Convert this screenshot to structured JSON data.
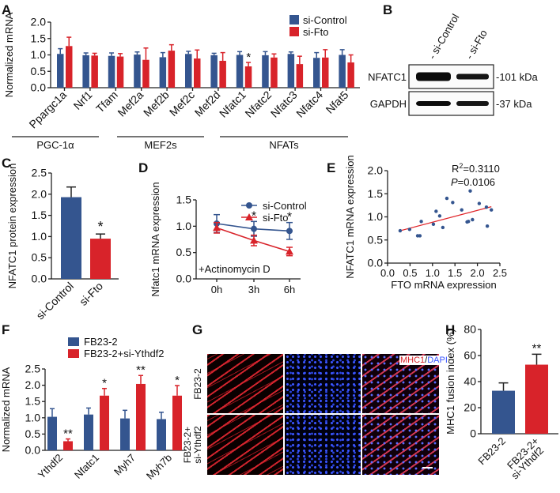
{
  "colors": {
    "control": "#34558f",
    "treatment": "#d8232a",
    "fit_line": "#e0262b",
    "axis": "#222222"
  },
  "panel_labels": {
    "a": "A",
    "b": "B",
    "c": "C",
    "d": "D",
    "e": "E",
    "f": "F",
    "g": "G",
    "h": "H"
  },
  "chart_data": [
    {
      "id": "A",
      "type": "bar",
      "ylabel": "Normalized mRNA",
      "ylim": [
        0,
        2.0
      ],
      "yticks": [
        "0.0",
        "0.5",
        "1.0",
        "1.5",
        "2.0"
      ],
      "legend": [
        "si-Control",
        "si-Fto"
      ],
      "legend_position": "top-right",
      "categories": [
        "Ppargc1a",
        "Nrf1",
        "Tfam",
        "Mef2a",
        "Mef2b",
        "Mef2c",
        "Mef2d",
        "Nfatc1",
        "Nfatc2",
        "Nfatc3",
        "Nfatc4",
        "Nfat5"
      ],
      "series": [
        {
          "name": "si-Control",
          "values": [
            1.03,
            0.99,
            0.97,
            1.01,
            0.93,
            1.03,
            0.99,
            1.0,
            0.99,
            1.03,
            0.91,
            1.0
          ],
          "errors": [
            0.16,
            0.07,
            0.09,
            0.08,
            0.14,
            0.08,
            0.06,
            0.1,
            0.11,
            0.06,
            0.16,
            0.16
          ]
        },
        {
          "name": "si-Fto",
          "values": [
            1.27,
            0.98,
            0.95,
            0.85,
            1.13,
            0.89,
            0.82,
            0.65,
            0.92,
            0.72,
            0.92,
            0.77
          ],
          "errors": [
            0.27,
            0.07,
            0.09,
            0.36,
            0.18,
            0.26,
            0.25,
            0.12,
            0.11,
            0.24,
            0.24,
            0.23
          ]
        }
      ],
      "significance": [
        {
          "category": "Nfatc1",
          "label": "*"
        }
      ],
      "groups": [
        {
          "label": "PGC-1α"
        },
        {
          "label": "MEF2s"
        },
        {
          "label": "NFATs"
        }
      ]
    },
    {
      "id": "C",
      "type": "bar",
      "ylabel": "NFATC1 protein expression",
      "ylim": [
        0,
        2.5
      ],
      "yticks": [
        "0.0",
        "0.5",
        "1.0",
        "1.5",
        "2.0",
        "2.5"
      ],
      "categories": [
        "si-Control",
        "si-Fto"
      ],
      "values": [
        1.93,
        0.95
      ],
      "errors": [
        0.24,
        0.11
      ],
      "significance": [
        {
          "category": "si-Fto",
          "label": "*"
        }
      ]
    },
    {
      "id": "D",
      "type": "line",
      "ylabel": "Nfatc1 mRNA expression",
      "ylim": [
        0,
        1.5
      ],
      "yticks": [
        "0.0",
        "0.5",
        "1.0",
        "1.5"
      ],
      "categories": [
        "0h",
        "3h",
        "6h"
      ],
      "annotation": "+Actinomycin D",
      "legend_position": "top-right",
      "series": [
        {
          "name": "si-Control",
          "values": [
            1.05,
            0.95,
            0.91
          ],
          "errors": [
            0.17,
            0.14,
            0.16
          ]
        },
        {
          "name": "si-Fto",
          "values": [
            0.97,
            0.73,
            0.52
          ],
          "errors": [
            0.1,
            0.1,
            0.08
          ]
        }
      ],
      "significance": [
        {
          "category": "3h",
          "label": "*"
        },
        {
          "category": "6h",
          "label": "*"
        }
      ]
    },
    {
      "id": "E",
      "type": "scatter",
      "xlabel": "FTO mRNA expression",
      "ylabel": "NFATC1 mRNA expression",
      "xlim": [
        0,
        2.5
      ],
      "ylim": [
        0,
        2.0
      ],
      "xticks": [
        "0.0",
        "0.5",
        "1.0",
        "1.5",
        "2.0",
        "2.5"
      ],
      "yticks": [
        "0.0",
        "0.5",
        "1.0",
        "1.5",
        "2.0"
      ],
      "stat_r2": "R",
      "stat_r2_sup": "2",
      "stat_r2_val": "=0.3110",
      "stat_p": "P",
      "stat_p_val": "=0.0106",
      "x": [
        0.28,
        0.49,
        0.67,
        0.72,
        0.75,
        1.02,
        1.08,
        1.16,
        1.23,
        1.32,
        1.45,
        1.65,
        1.77,
        1.8,
        1.84,
        1.89,
        2.04,
        2.2,
        2.22,
        2.31
      ],
      "y": [
        0.7,
        0.73,
        0.59,
        0.59,
        0.9,
        0.84,
        1.12,
        1.02,
        0.77,
        1.4,
        1.31,
        1.15,
        0.89,
        0.9,
        1.56,
        0.94,
        1.29,
        1.21,
        0.8,
        1.15
      ],
      "fit": {
        "x": [
          0.28,
          2.31
        ],
        "y": [
          0.7,
          1.22
        ]
      }
    },
    {
      "id": "F",
      "type": "bar",
      "ylabel": "Normalized mRNA",
      "ylim": [
        0,
        2.5
      ],
      "yticks": [
        "0.0",
        "0.5",
        "1.0",
        "1.5",
        "2.0",
        "2.5"
      ],
      "legend": [
        "FB23-2",
        "FB23-2+si-Ythdf2"
      ],
      "legend_position": "top-left",
      "categories": [
        "Ythdf2",
        "Nfatc1",
        "Myh7",
        "Myh7b"
      ],
      "series": [
        {
          "name": "FB23-2",
          "values": [
            1.03,
            1.1,
            0.98,
            0.96
          ],
          "errors": [
            0.25,
            0.2,
            0.25,
            0.21
          ]
        },
        {
          "name": "FB23-2+si-Ythdf2",
          "values": [
            0.28,
            1.68,
            2.04,
            1.68
          ],
          "errors": [
            0.07,
            0.22,
            0.26,
            0.31
          ]
        }
      ],
      "significance": [
        {
          "category": "Ythdf2",
          "label": "**"
        },
        {
          "category": "Nfatc1",
          "label": "*"
        },
        {
          "category": "Myh7",
          "label": "**"
        },
        {
          "category": "Myh7b",
          "label": "*"
        }
      ]
    },
    {
      "id": "H",
      "type": "bar",
      "ylabel": "MHC1 fusion index (%)",
      "ylim": [
        0,
        80
      ],
      "yticks": [
        "0",
        "20",
        "40",
        "60",
        "80"
      ],
      "categories": [
        "FB23-2",
        "FB23-2+ si-Ythdf2"
      ],
      "category_lines": [
        [
          "FB23-2"
        ],
        [
          "FB23-2+",
          "si-Ythdf2"
        ]
      ],
      "values": [
        33,
        53
      ],
      "errors": [
        6,
        8
      ],
      "significance": [
        {
          "category": "FB23-2+ si-Ythdf2",
          "label": "**"
        }
      ]
    }
  ],
  "blot": {
    "lanes": [
      "- si-Control",
      "- si-Fto"
    ],
    "rows": [
      {
        "protein": "NFATC1",
        "size": "-101 kDa"
      },
      {
        "protein": "GAPDH",
        "size": "-37 kDa"
      }
    ]
  },
  "microscopy": {
    "rows": [
      "FB23-2",
      "FB23-2+ si-Ythdf2"
    ],
    "row_lines": [
      [
        "FB23-2"
      ],
      [
        "FB23-2+",
        "si-Ythdf2"
      ]
    ],
    "channel_red": "MHC1",
    "channel_sep": "/",
    "channel_blue": "DAPI",
    "channel_blue_color": "#3a55ff"
  }
}
